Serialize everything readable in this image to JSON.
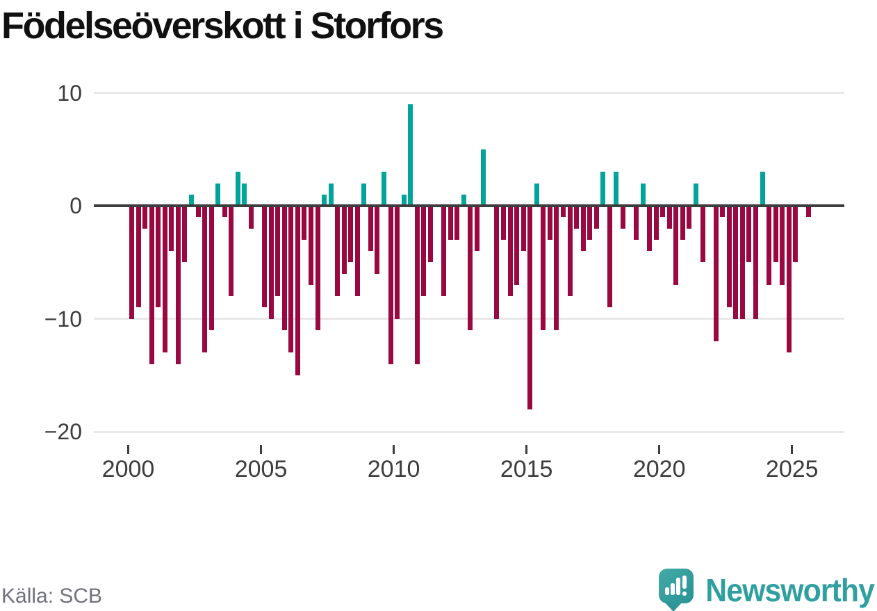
{
  "title": "Födelseöverskott i Storfors",
  "y_axis": {
    "ticks": [
      {
        "label": "10",
        "value": 10
      },
      {
        "label": "0",
        "value": 0
      },
      {
        "label": "−10",
        "value": -10
      },
      {
        "label": "−20",
        "value": -20
      }
    ]
  },
  "x_axis": {
    "ticks": [
      {
        "label": "2000",
        "year": 2000
      },
      {
        "label": "2005",
        "year": 2005
      },
      {
        "label": "2010",
        "year": 2010
      },
      {
        "label": "2015",
        "year": 2015
      },
      {
        "label": "2020",
        "year": 2020
      },
      {
        "label": "2025",
        "year": 2025
      }
    ]
  },
  "chart_data": {
    "type": "bar",
    "title": "Födelseöverskott i Storfors",
    "frequency": "quarterly",
    "series_start": "2000-Q1",
    "series_end": "2025-Q3",
    "values": [
      -10,
      -9,
      -2,
      -14,
      -9,
      -13,
      -4,
      -14,
      -5,
      1,
      -1,
      -13,
      -11,
      2,
      -1,
      -8,
      3,
      2,
      -2,
      0,
      -9,
      -10,
      -8,
      -11,
      -13,
      -15,
      -3,
      -7,
      -11,
      1,
      2,
      -8,
      -6,
      -5,
      -8,
      2,
      -4,
      -6,
      3,
      -14,
      -10,
      1,
      9,
      -14,
      -8,
      -5,
      0,
      -8,
      -3,
      -3,
      1,
      -11,
      -4,
      5,
      0,
      -10,
      -3,
      -8,
      -7,
      -4,
      -18,
      2,
      -11,
      -3,
      -11,
      -1,
      -8,
      -2,
      -4,
      -3,
      -2,
      3,
      -9,
      3,
      -2,
      0,
      -3,
      2,
      -4,
      -3,
      -1,
      -2,
      -7,
      -3,
      -2,
      2,
      -5,
      0,
      -12,
      -1,
      -9,
      -10,
      -10,
      -5,
      -10,
      3,
      -7,
      -5,
      -7,
      -13,
      -5,
      0,
      -1
    ],
    "ylim": [
      -20.5,
      11.5
    ],
    "ytick_values": [
      10,
      0,
      -10,
      -20
    ],
    "xtick_years": [
      2000,
      2005,
      2010,
      2015,
      2020,
      2025
    ],
    "positive_color": "#00a49b",
    "negative_color": "#9a0841",
    "zero_line_color": "#3d3d3d",
    "gridline_color": "#e8e8e8",
    "grid": "horizontal gridlines at yticks"
  },
  "footer": {
    "source": "Källa: SCB",
    "brand": "Newsworthy",
    "brand_color": "#2f9fa0"
  }
}
